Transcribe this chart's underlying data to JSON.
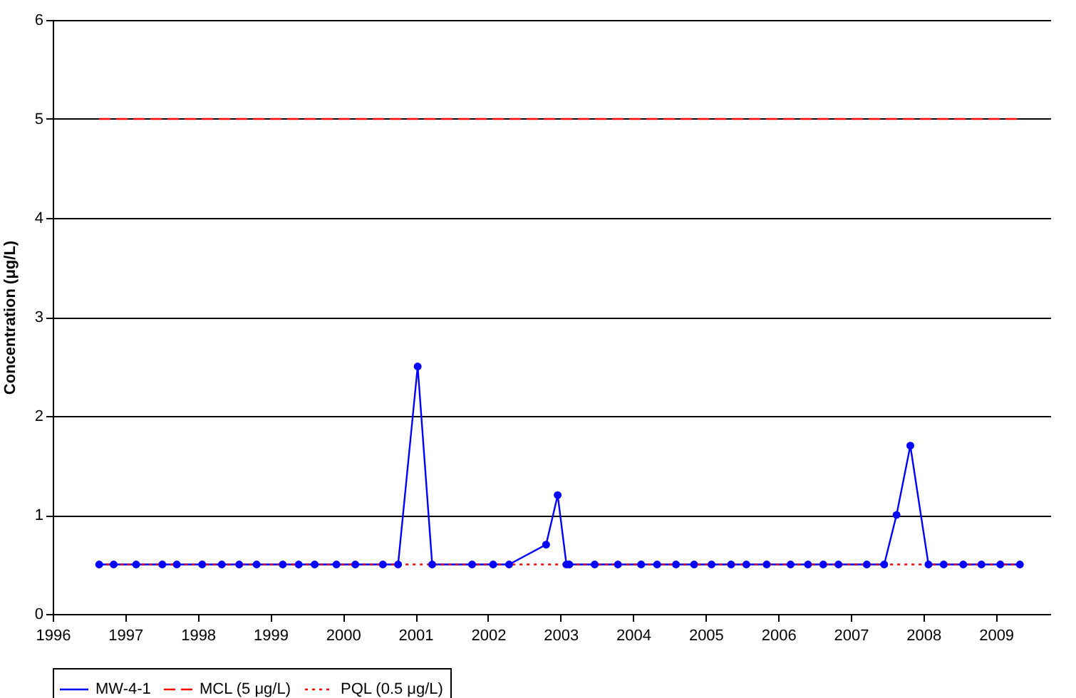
{
  "chart_data": {
    "type": "line",
    "ylabel": "Concentration (μg/L)",
    "xlim": [
      1996,
      2009.75
    ],
    "xticks": [
      1996,
      1997,
      1998,
      1999,
      2000,
      2001,
      2002,
      2003,
      2004,
      2005,
      2006,
      2007,
      2008,
      2009
    ],
    "ylim": [
      0,
      6
    ],
    "yticks": [
      0,
      1,
      2,
      3,
      4,
      5,
      6
    ],
    "grid": "y",
    "legend": "bottom",
    "series": [
      {
        "name": "MW-4-1",
        "color": "#0000ff",
        "marker": "circle",
        "line_style": "solid",
        "x": [
          1996.64,
          1996.84,
          1997.15,
          1997.51,
          1997.71,
          1998.06,
          1998.33,
          1998.57,
          1998.81,
          1999.17,
          1999.39,
          1999.61,
          1999.91,
          2000.17,
          2000.55,
          2000.76,
          2001.03,
          2001.23,
          2001.78,
          2002.07,
          2002.29,
          2002.8,
          2002.96,
          2003.08,
          2003.12,
          2003.47,
          2003.79,
          2004.11,
          2004.33,
          2004.59,
          2004.84,
          2005.08,
          2005.35,
          2005.56,
          2005.84,
          2006.17,
          2006.41,
          2006.62,
          2006.83,
          2007.22,
          2007.46,
          2007.63,
          2007.82,
          2008.07,
          2008.28,
          2008.55,
          2008.8,
          2009.06,
          2009.33
        ],
        "values": [
          0.5,
          0.5,
          0.5,
          0.5,
          0.5,
          0.5,
          0.5,
          0.5,
          0.5,
          0.5,
          0.5,
          0.5,
          0.5,
          0.5,
          0.5,
          0.5,
          2.5,
          0.5,
          0.5,
          0.5,
          0.5,
          0.7,
          1.2,
          0.5,
          0.5,
          0.5,
          0.5,
          0.5,
          0.5,
          0.5,
          0.5,
          0.5,
          0.5,
          0.5,
          0.5,
          0.5,
          0.5,
          0.5,
          0.5,
          0.5,
          0.5,
          1.0,
          1.7,
          0.5,
          0.5,
          0.5,
          0.5,
          0.5,
          0.5
        ]
      },
      {
        "name": "MCL (5 μg/L)",
        "color": "#ff0000",
        "marker": "none",
        "line_style": "dashed",
        "x": [
          1996.64,
          2009.33
        ],
        "values": [
          5,
          5
        ]
      },
      {
        "name": "PQL (0.5 μg/L)",
        "color": "#ff0000",
        "marker": "none",
        "line_style": "dotted",
        "x": [
          1996.64,
          2009.33
        ],
        "values": [
          0.5,
          0.5
        ]
      }
    ]
  }
}
